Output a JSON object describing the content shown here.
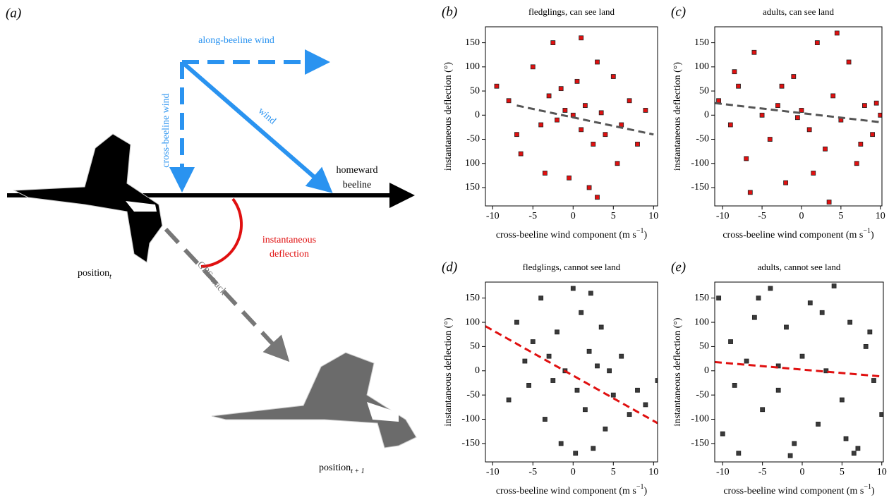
{
  "panel_a": {
    "label": "(a)",
    "along": "along-beeline wind",
    "cross": "cross-beeline wind",
    "wind": "wind",
    "homeward": [
      "homeward",
      "beeline"
    ],
    "deflection": [
      "instantaneous",
      "deflection"
    ],
    "gps": "GPS track",
    "position_t": {
      "text": "position",
      "sub": "t"
    },
    "position_t1": {
      "text": "position",
      "sub": "t + 1"
    }
  },
  "chart_data": [
    {
      "type": "scatter",
      "panel_label": "(b)",
      "title": "fledglings, can see land",
      "xlabel": {
        "text": "cross-beeline wind component (m s",
        "sup": "−1",
        "end": ")"
      },
      "ylabel": "instantaneous deflection (°)",
      "xlim": [
        -10.9,
        10.5
      ],
      "ylim": [
        -188,
        183
      ],
      "xticks": [
        -10,
        -5,
        0,
        5,
        10
      ],
      "yticks": [
        150,
        100,
        50,
        0,
        -50,
        {
          "value": -100,
          "label": "100"
        },
        {
          "value": -150,
          "label": "150"
        }
      ],
      "series": [
        {
          "color": "#e01010",
          "x": [
            -9.5,
            -8,
            -6.5,
            -5,
            -4,
            -3,
            -2.5,
            -2,
            -1,
            -0.5,
            0,
            0.5,
            1,
            1.5,
            2,
            2.5,
            3,
            3.5,
            4,
            5,
            5.5,
            6,
            7,
            8,
            9,
            -7,
            -3.5,
            1,
            3,
            -1.5
          ],
          "values": [
            60,
            30,
            -80,
            100,
            -20,
            40,
            150,
            -10,
            10,
            -130,
            0,
            70,
            -30,
            20,
            -150,
            -60,
            110,
            5,
            -40,
            80,
            -100,
            -20,
            30,
            -60,
            10,
            -40,
            -120,
            160,
            -170,
            55
          ]
        }
      ],
      "fit": {
        "color": "#555555",
        "x": [
          -7,
          10
        ],
        "values": [
          20,
          -40
        ]
      }
    },
    {
      "type": "scatter",
      "panel_label": "(c)",
      "title": "adults, can see land",
      "xlabel": {
        "text": "cross-beeline wind component (m s",
        "sup": "−1",
        "end": ")"
      },
      "ylabel": "instantaneous deflection (°)",
      "xlim": [
        -11,
        10.2
      ],
      "ylim": [
        -188,
        183
      ],
      "xticks": [
        -10,
        -5,
        0,
        5,
        10
      ],
      "yticks": [
        150,
        100,
        50,
        0,
        -50,
        -100,
        -150
      ],
      "series": [
        {
          "color": "#e01010",
          "x": [
            -10.5,
            -9,
            -8,
            -7,
            -6,
            -5,
            -4,
            -3,
            -2,
            -1,
            0,
            1,
            2,
            3,
            4,
            5,
            6,
            7,
            8,
            9,
            10,
            -6.5,
            -2.5,
            1.5,
            4.5,
            7.5,
            -8.5,
            -0.5,
            3.5,
            9.5
          ],
          "values": [
            30,
            -20,
            60,
            -90,
            130,
            0,
            -50,
            20,
            -140,
            80,
            10,
            -30,
            150,
            -70,
            40,
            -10,
            110,
            -100,
            20,
            -40,
            0,
            -160,
            60,
            -120,
            170,
            -60,
            90,
            -5,
            -180,
            25
          ]
        }
      ],
      "fit": {
        "color": "#555555",
        "x": [
          -11,
          10.2
        ],
        "values": [
          25,
          -15
        ]
      }
    },
    {
      "type": "scatter",
      "panel_label": "(d)",
      "title": "fledglings, cannot see land",
      "xlabel": {
        "text": "cross-beeline wind component (m s",
        "sup": "−1",
        "end": ")"
      },
      "ylabel": "instantaneous deflection (°)",
      "xlim": [
        -10.9,
        10.5
      ],
      "ylim": [
        -188,
        183
      ],
      "xticks": [
        -10,
        -5,
        0,
        5,
        10
      ],
      "yticks": [
        150,
        100,
        50,
        0,
        -50,
        -100,
        -150
      ],
      "series": [
        {
          "color": "#3a3a3a",
          "x": [
            -8,
            -7,
            -6,
            -5.5,
            -5,
            -4,
            -3.5,
            -3,
            -2,
            -1.5,
            -1,
            0,
            0.5,
            1,
            1.5,
            2,
            2.5,
            3,
            3.5,
            4,
            5,
            6,
            7,
            8,
            9,
            -2.5,
            0.3,
            2.2,
            4.5,
            10.5
          ],
          "values": [
            -60,
            100,
            20,
            -30,
            60,
            150,
            -100,
            30,
            80,
            -150,
            0,
            170,
            -40,
            120,
            -80,
            40,
            -160,
            10,
            90,
            -120,
            -50,
            30,
            -90,
            -40,
            -70,
            -20,
            -170,
            160,
            0,
            -20
          ]
        }
      ],
      "fit": {
        "color": "#e01010",
        "x": [
          -10.9,
          10.5
        ],
        "values": [
          92,
          -108
        ]
      }
    },
    {
      "type": "scatter",
      "panel_label": "(e)",
      "title": "adults, cannot see land",
      "xlabel": {
        "text": "cross-beeline wind component (m s",
        "sup": "−1",
        "end": ")"
      },
      "ylabel": "instantaneous deflection (°)",
      "xlim": [
        -11,
        10.2
      ],
      "ylim": [
        -188,
        183
      ],
      "xticks": [
        -10,
        -5,
        0,
        5,
        10
      ],
      "yticks": [
        150,
        100,
        50,
        0,
        -50,
        -100,
        -150
      ],
      "series": [
        {
          "color": "#3a3a3a",
          "x": [
            -10.5,
            -10,
            -9,
            -8,
            -7,
            -6,
            -5,
            -4,
            -3,
            -2,
            -1,
            0,
            1,
            2,
            3,
            4,
            5,
            6,
            7,
            8,
            9,
            10,
            -8.5,
            -5.5,
            -1.5,
            2.5,
            5.5,
            8.5,
            -3,
            6.5
          ],
          "values": [
            150,
            -130,
            60,
            -170,
            20,
            110,
            -80,
            170,
            -40,
            90,
            -150,
            30,
            140,
            -110,
            0,
            175,
            -60,
            100,
            -160,
            50,
            -20,
            -90,
            -30,
            150,
            -175,
            120,
            -140,
            80,
            10,
            -170
          ]
        }
      ],
      "fit": {
        "color": "#e01010",
        "x": [
          -11,
          10.2
        ],
        "values": [
          18,
          -12
        ]
      }
    }
  ]
}
